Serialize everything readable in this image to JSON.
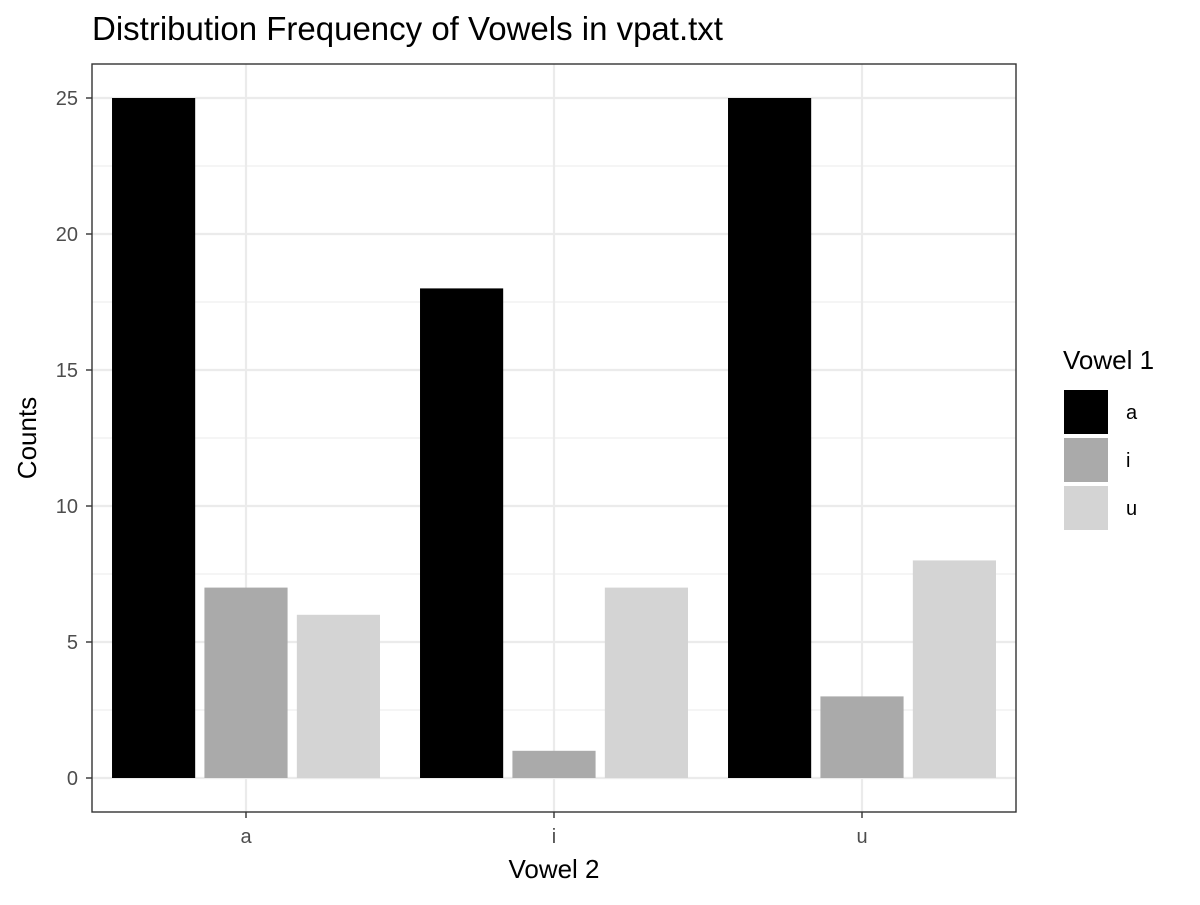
{
  "chart_data": {
    "type": "bar",
    "title": "Distribution Frequency of Vowels in vpat.txt",
    "xlabel": "Vowel 2",
    "ylabel": "Counts",
    "categories": [
      "a",
      "i",
      "u"
    ],
    "series": [
      {
        "name": "a",
        "values": [
          25,
          18,
          25
        ],
        "color": "#000000"
      },
      {
        "name": "i",
        "values": [
          7,
          1,
          3
        ],
        "color": "#aaaaaa"
      },
      {
        "name": "u",
        "values": [
          6,
          7,
          8
        ],
        "color": "#d4d4d4"
      }
    ],
    "ylim": [
      -1.25,
      26.25
    ],
    "yticks": [
      0,
      5,
      10,
      15,
      20,
      25
    ],
    "legend": {
      "title": "Vowel 1",
      "position": "right"
    },
    "grid": true
  }
}
